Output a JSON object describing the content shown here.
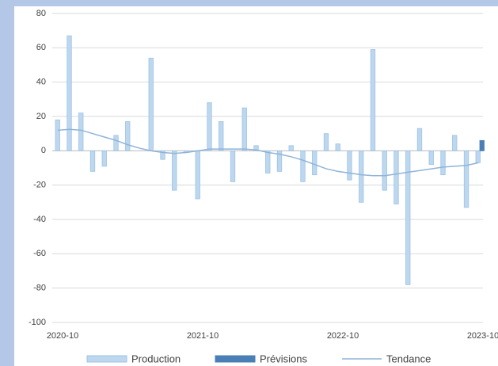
{
  "chart_data": {
    "type": "bar",
    "categories": [
      "2020-10",
      null,
      null,
      null,
      null,
      null,
      null,
      null,
      null,
      null,
      null,
      null,
      "2021-10",
      null,
      null,
      null,
      null,
      null,
      null,
      null,
      null,
      null,
      null,
      null,
      "2022-10",
      null,
      null,
      null,
      null,
      null,
      null,
      null,
      null,
      null,
      null,
      null,
      "2023-10"
    ],
    "series": [
      {
        "name": "Production",
        "type": "bar",
        "color": "#bdd7ee",
        "values": [
          18,
          67,
          22,
          -12,
          -9,
          9,
          17,
          0,
          54,
          -5,
          -23,
          -1,
          -28,
          28,
          17,
          -18,
          25,
          3,
          -13,
          -12,
          3,
          -18,
          -14,
          10,
          4,
          -17,
          -30,
          59,
          -23,
          -31,
          -78,
          13,
          -8,
          -14,
          9,
          -33,
          -7
        ]
      },
      {
        "name": "Prévisions",
        "type": "bar",
        "color": "#4a7fb5",
        "values": [
          null,
          null,
          null,
          null,
          null,
          null,
          null,
          null,
          null,
          null,
          null,
          null,
          null,
          null,
          null,
          null,
          null,
          null,
          null,
          null,
          null,
          null,
          null,
          null,
          null,
          null,
          null,
          null,
          null,
          null,
          null,
          null,
          null,
          null,
          null,
          null,
          6
        ]
      },
      {
        "name": "Tendance",
        "type": "line",
        "color": "#8fb4d9",
        "values": [
          12,
          12.5,
          12,
          10,
          8,
          6,
          3.5,
          1.5,
          0,
          -1,
          -1.5,
          -1,
          0,
          1,
          1,
          1,
          1,
          0.5,
          -1,
          -2,
          -3.5,
          -5.5,
          -8,
          -10.5,
          -12,
          -13,
          -14,
          -14.5,
          -14.5,
          -13.5,
          -12.5,
          -11.5,
          -10.5,
          -9.5,
          -9,
          -8.5,
          -7
        ]
      }
    ],
    "ylim": [
      -100,
      80
    ],
    "yticks": [
      -100,
      -80,
      -60,
      -40,
      -20,
      0,
      20,
      40,
      60,
      80
    ],
    "grid": true,
    "legend": "bottom"
  }
}
